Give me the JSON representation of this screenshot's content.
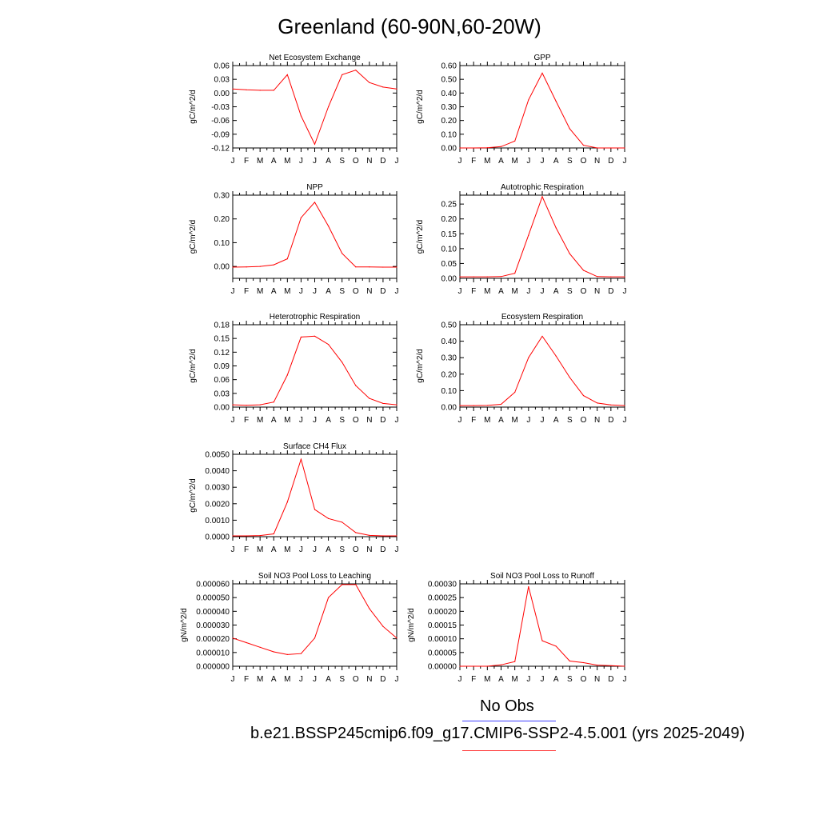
{
  "title": "Greenland (60-90N,60-20W)",
  "legend": {
    "obs_label": "No Obs",
    "obs_color": "#4040ff",
    "model_label": "b.e21.BSSP245cmip6.f09_g17.CMIP6-SSP2-4.5.001 (yrs 2025-2049)",
    "model_color": "#ff4040"
  },
  "line_color": "#ff0000",
  "chart_data": [
    {
      "type": "line",
      "title": "Net Ecosystem Exchange",
      "ylabel": "gC/m^2/d",
      "categories": [
        "J",
        "F",
        "M",
        "A",
        "M",
        "J",
        "J",
        "A",
        "S",
        "O",
        "N",
        "D",
        "J"
      ],
      "values": [
        0.009,
        0.007,
        0.006,
        0.006,
        0.04,
        -0.05,
        -0.112,
        -0.03,
        0.04,
        0.05,
        0.023,
        0.013,
        0.009
      ],
      "ylim": [
        -0.12,
        0.06
      ],
      "yticks": [
        "0.06",
        "0.03",
        "0.00",
        "-0.03",
        "-0.06",
        "-0.09",
        "-0.12"
      ],
      "ytick_values": [
        0.06,
        0.03,
        0.0,
        -0.03,
        -0.06,
        -0.09,
        -0.12
      ]
    },
    {
      "type": "line",
      "title": "GPP",
      "ylabel": "gC/m^2/d",
      "categories": [
        "J",
        "F",
        "M",
        "A",
        "M",
        "J",
        "J",
        "A",
        "S",
        "O",
        "N",
        "D",
        "J"
      ],
      "values": [
        0.0,
        0.0,
        0.002,
        0.01,
        0.05,
        0.35,
        0.545,
        0.34,
        0.14,
        0.02,
        0.0,
        0.0,
        0.0
      ],
      "ylim": [
        0.0,
        0.6
      ],
      "yticks": [
        "0.60",
        "0.50",
        "0.40",
        "0.30",
        "0.20",
        "0.10",
        "0.00"
      ],
      "ytick_values": [
        0.6,
        0.5,
        0.4,
        0.3,
        0.2,
        0.1,
        0.0
      ]
    },
    {
      "type": "line",
      "title": "NPP",
      "ylabel": "gC/m^2/d",
      "categories": [
        "J",
        "F",
        "M",
        "A",
        "M",
        "J",
        "J",
        "A",
        "S",
        "O",
        "N",
        "D",
        "J"
      ],
      "values": [
        -0.003,
        -0.002,
        0.0,
        0.007,
        0.032,
        0.205,
        0.27,
        0.17,
        0.055,
        -0.002,
        -0.002,
        -0.003,
        -0.003
      ],
      "ylim": [
        -0.05,
        0.3
      ],
      "yticks": [
        "0.30",
        "0.20",
        "0.10",
        "0.00"
      ],
      "ytick_values": [
        0.3,
        0.2,
        0.1,
        0.0
      ]
    },
    {
      "type": "line",
      "title": "Autotrophic Respiration",
      "ylabel": "gC/m^2/d",
      "categories": [
        "J",
        "F",
        "M",
        "A",
        "M",
        "J",
        "J",
        "A",
        "S",
        "O",
        "N",
        "D",
        "J"
      ],
      "values": [
        0.005,
        0.005,
        0.005,
        0.006,
        0.017,
        0.145,
        0.275,
        0.17,
        0.083,
        0.027,
        0.006,
        0.005,
        0.005
      ],
      "ylim": [
        0.0,
        0.28
      ],
      "yticks": [
        "0.25",
        "0.20",
        "0.15",
        "0.10",
        "0.05",
        "0.00"
      ],
      "ytick_values": [
        0.25,
        0.2,
        0.15,
        0.1,
        0.05,
        0.0
      ]
    },
    {
      "type": "line",
      "title": "Heterotrophic Respiration",
      "ylabel": "gC/m^2/d",
      "categories": [
        "J",
        "F",
        "M",
        "A",
        "M",
        "J",
        "J",
        "A",
        "S",
        "O",
        "N",
        "D",
        "J"
      ],
      "values": [
        0.005,
        0.004,
        0.005,
        0.011,
        0.07,
        0.153,
        0.155,
        0.137,
        0.098,
        0.047,
        0.019,
        0.008,
        0.005
      ],
      "ylim": [
        0.0,
        0.18
      ],
      "yticks": [
        "0.18",
        "0.15",
        "0.12",
        "0.09",
        "0.06",
        "0.03",
        "0.00"
      ],
      "ytick_values": [
        0.18,
        0.15,
        0.12,
        0.09,
        0.06,
        0.03,
        0.0
      ]
    },
    {
      "type": "line",
      "title": "Ecosystem Respiration",
      "ylabel": "gC/m^2/d",
      "categories": [
        "J",
        "F",
        "M",
        "A",
        "M",
        "J",
        "J",
        "A",
        "S",
        "O",
        "N",
        "D",
        "J"
      ],
      "values": [
        0.009,
        0.009,
        0.01,
        0.017,
        0.09,
        0.3,
        0.43,
        0.31,
        0.18,
        0.07,
        0.025,
        0.013,
        0.009
      ],
      "ylim": [
        0.0,
        0.5
      ],
      "yticks": [
        "0.50",
        "0.40",
        "0.30",
        "0.20",
        "0.10",
        "0.00"
      ],
      "ytick_values": [
        0.5,
        0.4,
        0.3,
        0.2,
        0.1,
        0.0
      ]
    },
    {
      "type": "line",
      "title": "Surface CH4 Flux",
      "ylabel": "gC/m^2/d",
      "categories": [
        "J",
        "F",
        "M",
        "A",
        "M",
        "J",
        "J",
        "A",
        "S",
        "O",
        "N",
        "D",
        "J"
      ],
      "values": [
        5e-05,
        5e-05,
        7e-05,
        0.00017,
        0.0021,
        0.0047,
        0.00165,
        0.0011,
        0.00088,
        0.00025,
        8e-05,
        5e-05,
        5e-05
      ],
      "ylim": [
        0.0,
        0.005
      ],
      "yticks": [
        "0.0050",
        "0.0040",
        "0.0030",
        "0.0020",
        "0.0010",
        "0.0000"
      ],
      "ytick_values": [
        0.005,
        0.004,
        0.003,
        0.002,
        0.001,
        0.0
      ]
    },
    {
      "type": "line",
      "title": "Soil NO3 Pool Loss to Leaching",
      "ylabel": "gN/m^2/d",
      "categories": [
        "J",
        "F",
        "M",
        "A",
        "M",
        "J",
        "J",
        "A",
        "S",
        "O",
        "N",
        "D",
        "J"
      ],
      "values": [
        2.05e-05,
        1.72e-05,
        1.38e-05,
        1.05e-05,
        8.5e-06,
        9.2e-06,
        2.05e-05,
        5e-05,
        5.95e-05,
        5.95e-05,
        4.2e-05,
        2.9e-05,
        2.05e-05
      ],
      "ylim": [
        0.0,
        6e-05
      ],
      "yticks": [
        "0.000060",
        "0.000050",
        "0.000040",
        "0.000030",
        "0.000020",
        "0.000010",
        "0.000000"
      ],
      "ytick_values": [
        6e-05,
        5e-05,
        4e-05,
        3e-05,
        2e-05,
        1e-05,
        0.0
      ]
    },
    {
      "type": "line",
      "title": "Soil NO3 Pool Loss to Runoff",
      "ylabel": "gN/m^2/d",
      "categories": [
        "J",
        "F",
        "M",
        "A",
        "M",
        "J",
        "J",
        "A",
        "S",
        "O",
        "N",
        "D",
        "J"
      ],
      "values": [
        0.0,
        0.0,
        0.0,
        5e-06,
        1.7e-05,
        0.00029,
        9.3e-05,
        7.3e-05,
        1.9e-05,
        1.3e-05,
        4e-06,
        2e-06,
        0.0
      ],
      "ylim": [
        0.0,
        0.0003
      ],
      "yticks": [
        "0.00030",
        "0.00025",
        "0.00020",
        "0.00015",
        "0.00010",
        "0.00005",
        "0.00000"
      ],
      "ytick_values": [
        0.0003,
        0.00025,
        0.0002,
        0.00015,
        0.0001,
        5e-05,
        0.0
      ]
    }
  ]
}
